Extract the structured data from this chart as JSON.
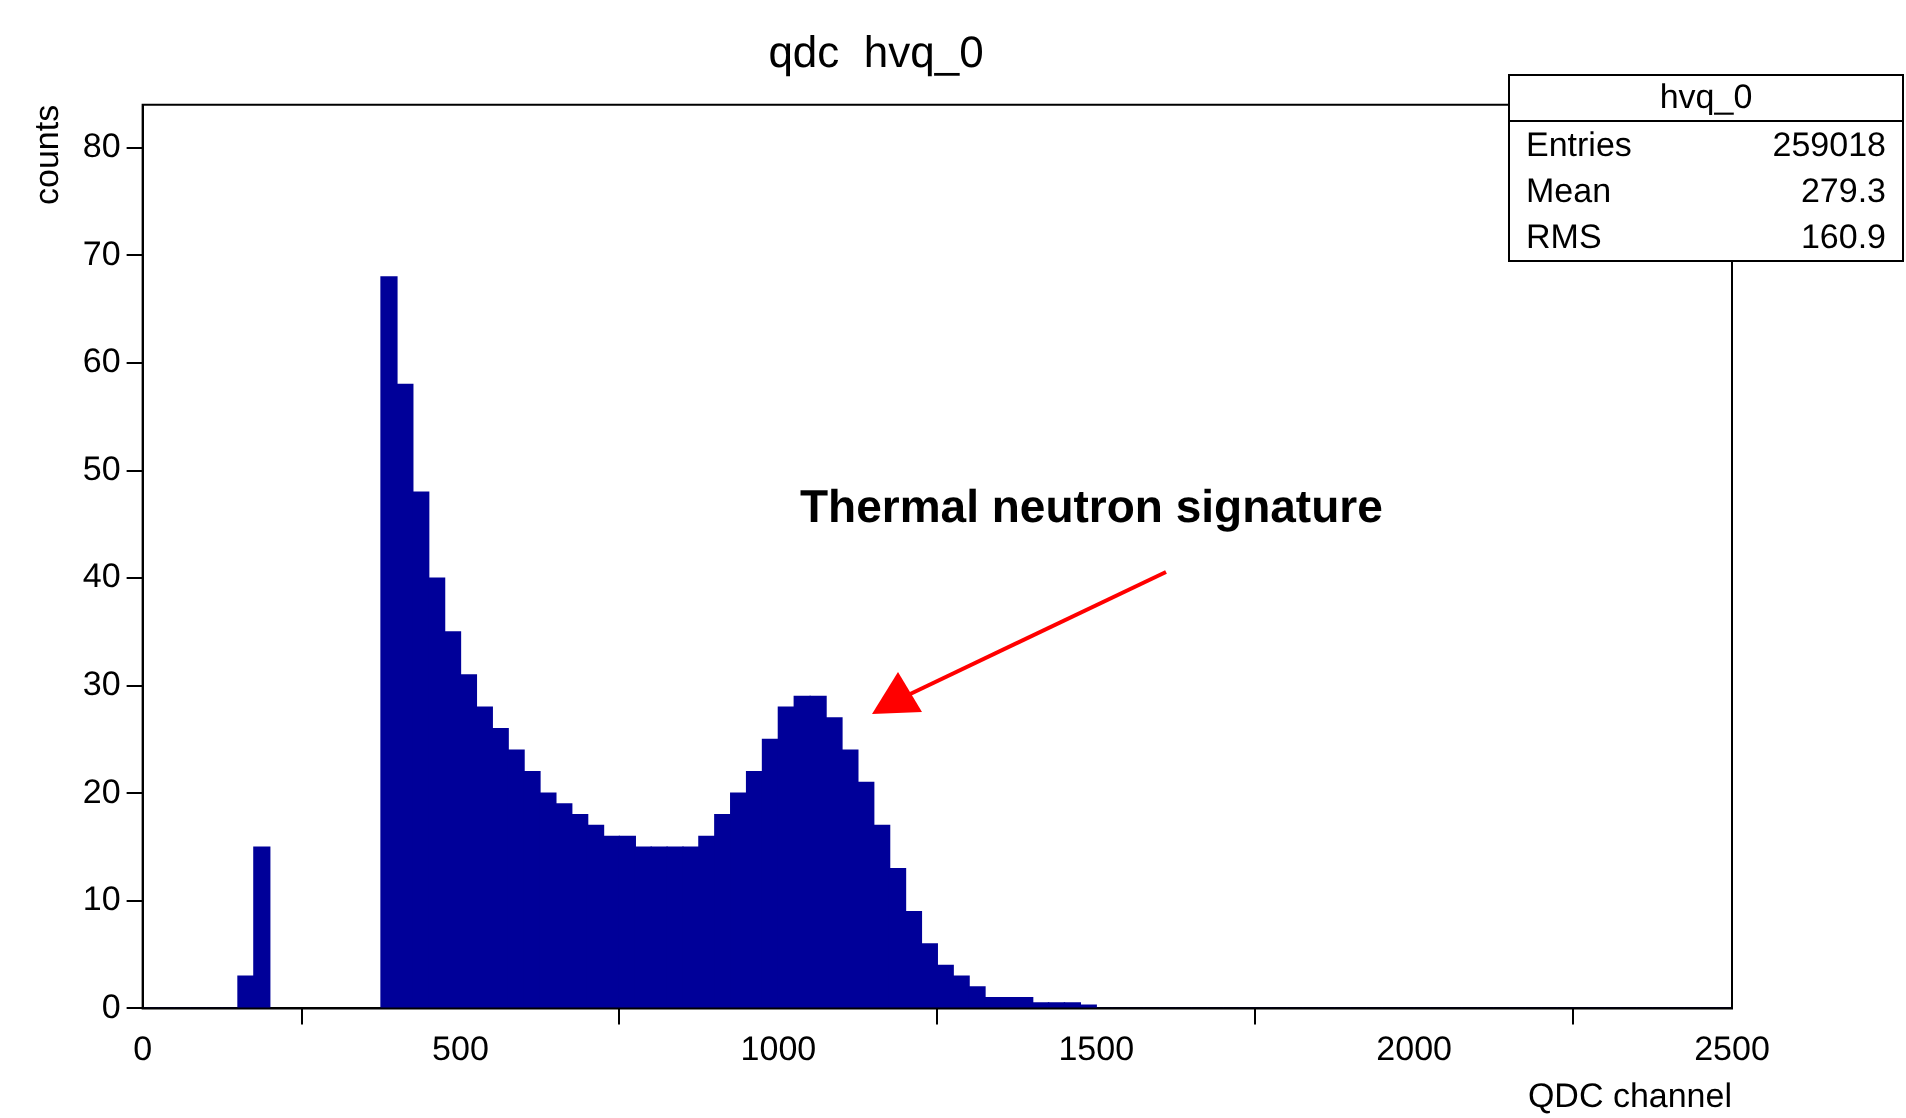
{
  "chart_data": {
    "type": "histogram",
    "title": "qdc  hvq_0",
    "xlabel": "QDC channel",
    "ylabel": "counts",
    "bins": [
      0,
      25,
      50,
      75,
      100,
      125,
      150,
      175,
      200,
      225,
      250,
      275,
      300,
      325,
      350,
      375,
      400,
      425,
      450,
      475,
      500,
      525,
      550,
      575,
      600,
      625,
      650,
      675,
      700,
      725,
      750,
      775,
      800,
      825,
      850,
      875,
      900,
      925,
      950,
      975,
      1000,
      1025,
      1050,
      1075,
      1100,
      1125,
      1150,
      1175,
      1200,
      1225,
      1250,
      1275,
      1300,
      1325,
      1350,
      1375,
      1400,
      1425,
      1450,
      1475,
      1500,
      1525,
      1550,
      1575,
      1600,
      1625,
      1650,
      1675,
      1700,
      1725,
      1750,
      1775,
      1800,
      1825,
      1850,
      1875,
      1900,
      1925,
      1950,
      1975,
      2000,
      2025,
      2050,
      2075,
      2100,
      2125,
      2150,
      2175,
      2200,
      2225,
      2250,
      2275,
      2300,
      2325,
      2350,
      2375,
      2400,
      2425,
      2450,
      2475,
      2500
    ],
    "values": [
      0,
      0,
      0,
      0,
      0,
      0,
      3,
      15,
      null,
      null,
      null,
      null,
      null,
      null,
      null,
      68,
      58,
      48,
      40,
      35,
      31,
      28,
      26,
      24,
      22,
      20,
      19,
      18,
      17,
      16,
      16,
      15,
      15,
      15,
      15,
      16,
      18,
      20,
      22,
      25,
      28,
      29,
      29,
      27,
      24,
      21,
      17,
      13,
      9,
      6,
      4,
      3,
      2,
      1,
      1,
      1,
      0.5,
      0.5,
      0.5,
      0.3,
      0,
      0,
      0,
      0,
      0,
      0,
      0,
      0,
      0,
      0,
      0,
      0,
      0,
      0,
      0,
      0,
      0,
      0,
      0,
      0,
      0,
      0,
      0,
      0,
      0,
      0,
      0,
      0,
      0,
      0,
      0,
      0,
      0,
      0,
      0,
      0,
      0,
      0,
      0,
      0
    ],
    "color": "#000099",
    "xlim": [
      0,
      2500
    ],
    "xticks": [
      0,
      500,
      1000,
      1500,
      2000,
      2500
    ],
    "ylim": [
      0,
      84
    ],
    "yticks": [
      0,
      10,
      20,
      30,
      40,
      50,
      60,
      70,
      80
    ],
    "grid": false,
    "legend": false,
    "annotations": [
      "Thermal neutron signature",
      "hvq_0",
      "Entries",
      "259018",
      "Mean",
      "279.3",
      "RMS",
      "160.9"
    ]
  }
}
